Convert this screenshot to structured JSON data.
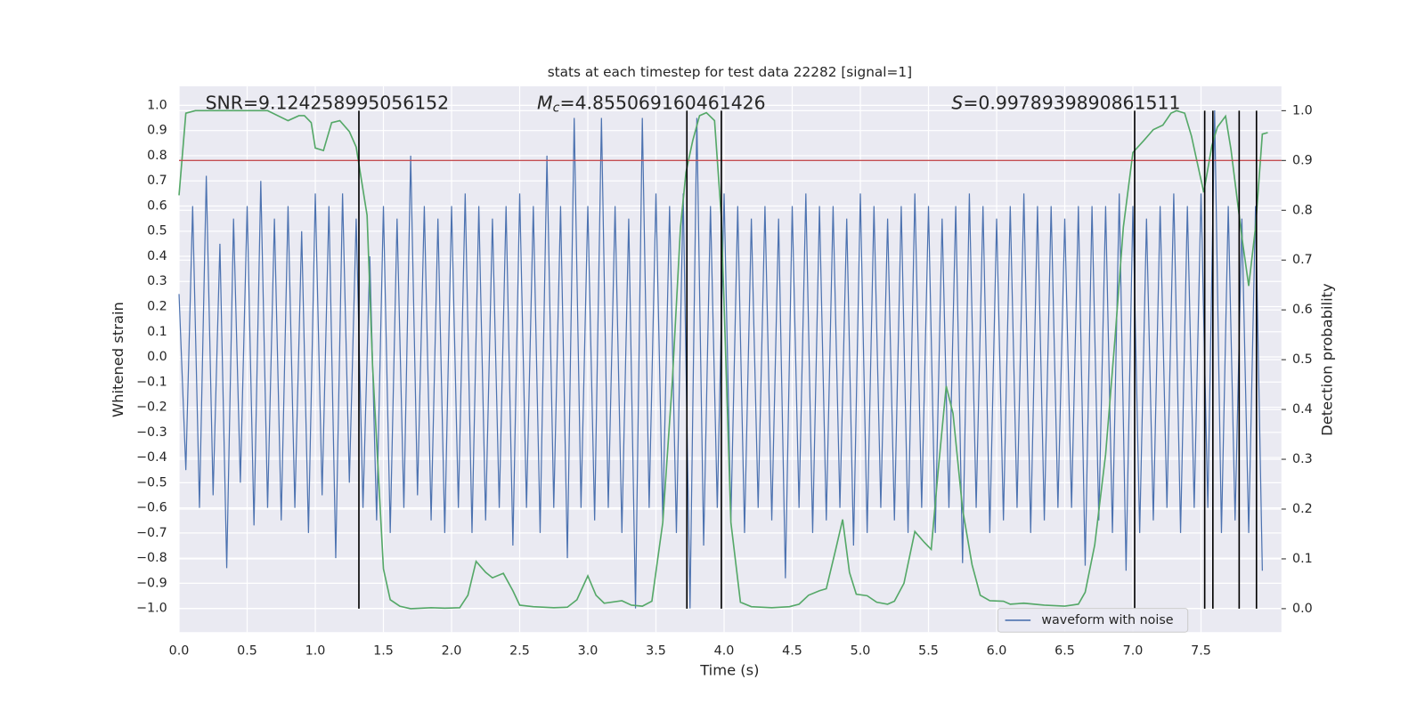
{
  "chart_data": {
    "type": "line",
    "title": "stats at each timestep for test data 22282 [signal=1]",
    "xlabel": "Time (s)",
    "ylabel": "Whitened strain",
    "y2label": "Detection probability",
    "annotations": [
      {
        "text": "SNR=9.124258995056152"
      },
      {
        "symbol": "M",
        "sub": "c",
        "text": "=4.855069160461426"
      },
      {
        "symbol": "S",
        "text": "=0.9978939890861511"
      }
    ],
    "xlim": [
      0,
      8.09
    ],
    "ylim": [
      -1.094,
      1.076
    ],
    "y2lim": [
      -0.047,
      1.049
    ],
    "xticks": [
      {
        "value": 0,
        "label": "0.0"
      },
      {
        "value": 0.5,
        "label": "0.5"
      },
      {
        "value": 1,
        "label": "1.0"
      },
      {
        "value": 1.5,
        "label": "1.5"
      },
      {
        "value": 2,
        "label": "2.0"
      },
      {
        "value": 2.5,
        "label": "2.5"
      },
      {
        "value": 3,
        "label": "3.0"
      },
      {
        "value": 3.5,
        "label": "3.5"
      },
      {
        "value": 4,
        "label": "4.0"
      },
      {
        "value": 4.5,
        "label": "4.5"
      },
      {
        "value": 5,
        "label": "5.0"
      },
      {
        "value": 5.5,
        "label": "5.5"
      },
      {
        "value": 6,
        "label": "6.0"
      },
      {
        "value": 6.5,
        "label": "6.5"
      },
      {
        "value": 7,
        "label": "7.0"
      },
      {
        "value": 7.5,
        "label": "7.5"
      }
    ],
    "yticks": [
      {
        "value": -1,
        "label": "−1.0"
      },
      {
        "value": -0.9,
        "label": "−0.9"
      },
      {
        "value": -0.8,
        "label": "−0.8"
      },
      {
        "value": -0.7,
        "label": "−0.7"
      },
      {
        "value": -0.6,
        "label": "−0.6"
      },
      {
        "value": -0.5,
        "label": "−0.5"
      },
      {
        "value": -0.4,
        "label": "−0.4"
      },
      {
        "value": -0.3,
        "label": "−0.3"
      },
      {
        "value": -0.2,
        "label": "−0.2"
      },
      {
        "value": -0.1,
        "label": "−0.1"
      },
      {
        "value": 0,
        "label": "0.0"
      },
      {
        "value": 0.1,
        "label": "0.1"
      },
      {
        "value": 0.2,
        "label": "0.2"
      },
      {
        "value": 0.3,
        "label": "0.3"
      },
      {
        "value": 0.4,
        "label": "0.4"
      },
      {
        "value": 0.5,
        "label": "0.5"
      },
      {
        "value": 0.6,
        "label": "0.6"
      },
      {
        "value": 0.7,
        "label": "0.7"
      },
      {
        "value": 0.8,
        "label": "0.8"
      },
      {
        "value": 0.9,
        "label": "0.9"
      },
      {
        "value": 1,
        "label": "1.0"
      }
    ],
    "y2ticks": [
      {
        "value": 0,
        "label": "0.0"
      },
      {
        "value": 0.1,
        "label": "0.1"
      },
      {
        "value": 0.2,
        "label": "0.2"
      },
      {
        "value": 0.3,
        "label": "0.3"
      },
      {
        "value": 0.4,
        "label": "0.4"
      },
      {
        "value": 0.5,
        "label": "0.5"
      },
      {
        "value": 0.6,
        "label": "0.6"
      },
      {
        "value": 0.7,
        "label": "0.7"
      },
      {
        "value": 0.8,
        "label": "0.8"
      },
      {
        "value": 0.9,
        "label": "0.9"
      },
      {
        "value": 1,
        "label": "1.0"
      }
    ],
    "grid": true,
    "legend": "lower right",
    "series": [
      {
        "name": "waveform with noise",
        "color": "#4c72b0",
        "axis": "y",
        "x": [
          0,
          0.05,
          0.1,
          0.15,
          0.2,
          0.25,
          0.3,
          0.35,
          0.4,
          0.45,
          0.5,
          0.55,
          0.6,
          0.65,
          0.7,
          0.75,
          0.8,
          0.85,
          0.9,
          0.95,
          1,
          1.05,
          1.1,
          1.15,
          1.2,
          1.25,
          1.3,
          1.35,
          1.4,
          1.45,
          1.5,
          1.55,
          1.6,
          1.65,
          1.7,
          1.75,
          1.8,
          1.85,
          1.9,
          1.95,
          2,
          2.05,
          2.1,
          2.15,
          2.2,
          2.25,
          2.3,
          2.35,
          2.4,
          2.45,
          2.5,
          2.55,
          2.6,
          2.65,
          2.7,
          2.75,
          2.8,
          2.85,
          2.9,
          2.95,
          3,
          3.05,
          3.1,
          3.15,
          3.2,
          3.25,
          3.3,
          3.35,
          3.4,
          3.45,
          3.5,
          3.55,
          3.6,
          3.65,
          3.7,
          3.75,
          3.8,
          3.85,
          3.9,
          3.95,
          4,
          4.05,
          4.1,
          4.15,
          4.2,
          4.25,
          4.3,
          4.35,
          4.4,
          4.45,
          4.5,
          4.55,
          4.6,
          4.65,
          4.7,
          4.75,
          4.8,
          4.85,
          4.9,
          4.95,
          5,
          5.05,
          5.1,
          5.15,
          5.2,
          5.25,
          5.3,
          5.35,
          5.4,
          5.45,
          5.5,
          5.55,
          5.6,
          5.65,
          5.7,
          5.75,
          5.8,
          5.85,
          5.9,
          5.95,
          6,
          6.05,
          6.1,
          6.15,
          6.2,
          6.25,
          6.3,
          6.35,
          6.4,
          6.45,
          6.5,
          6.55,
          6.6,
          6.65,
          6.7,
          6.75,
          6.8,
          6.85,
          6.9,
          6.95,
          7,
          7.05,
          7.1,
          7.15,
          7.2,
          7.25,
          7.3,
          7.35,
          7.4,
          7.45,
          7.5,
          7.55,
          7.6,
          7.65,
          7.7,
          7.75,
          7.8,
          7.85,
          7.9,
          7.95
        ],
        "values": [
          0.25,
          -0.45,
          0.6,
          -0.6,
          0.72,
          -0.55,
          0.45,
          -0.84,
          0.55,
          -0.5,
          0.6,
          -0.67,
          0.7,
          -0.6,
          0.55,
          -0.65,
          0.6,
          -0.6,
          0.5,
          -0.7,
          0.65,
          -0.55,
          0.6,
          -0.8,
          0.65,
          -0.5,
          0.55,
          -0.6,
          0.4,
          -0.65,
          0.6,
          -0.7,
          0.55,
          -0.6,
          0.8,
          -0.55,
          0.6,
          -0.65,
          0.55,
          -0.7,
          0.6,
          -0.6,
          0.65,
          -0.7,
          0.6,
          -0.65,
          0.55,
          -0.6,
          0.6,
          -0.75,
          0.65,
          -0.6,
          0.6,
          -0.7,
          0.8,
          -0.6,
          0.6,
          -0.8,
          0.95,
          -0.6,
          0.6,
          -0.65,
          0.95,
          -0.6,
          0.6,
          -0.7,
          0.55,
          -1.0,
          0.95,
          -0.6,
          0.65,
          -0.65,
          0.6,
          -0.7,
          0.65,
          -1.0,
          0.95,
          -0.75,
          0.6,
          -0.6,
          0.65,
          -0.65,
          0.6,
          -0.7,
          0.55,
          -0.6,
          0.6,
          -0.65,
          0.55,
          -0.88,
          0.6,
          -0.6,
          0.65,
          -0.7,
          0.6,
          -0.65,
          0.6,
          -0.6,
          0.55,
          -0.75,
          0.65,
          -0.7,
          0.6,
          -0.6,
          0.55,
          -0.65,
          0.6,
          -0.7,
          0.65,
          -0.6,
          0.6,
          -0.7,
          0.55,
          -0.6,
          0.6,
          -0.82,
          0.65,
          -0.6,
          0.6,
          -0.7,
          0.55,
          -0.65,
          0.6,
          -0.6,
          0.65,
          -0.7,
          0.6,
          -0.65,
          0.6,
          -0.6,
          0.55,
          -0.6,
          0.6,
          -0.83,
          0.6,
          -0.65,
          0.6,
          -0.7,
          0.65,
          -0.85,
          0.6,
          -0.7,
          0.55,
          -0.65,
          0.6,
          -0.6,
          0.65,
          -0.7,
          0.6,
          -0.6,
          0.65,
          -0.6,
          0.98,
          -0.7,
          0.6,
          -0.65,
          0.55,
          -0.7,
          0.6,
          -0.85
        ]
      },
      {
        "color": "#55a868",
        "axis": "y2",
        "x": [
          0,
          0.05,
          0.12,
          0.65,
          0.8,
          0.88,
          0.92,
          0.97,
          1.0,
          1.06,
          1.12,
          1.18,
          1.25,
          1.3,
          1.38,
          1.42,
          1.5,
          1.55,
          1.62,
          1.7,
          1.85,
          1.95,
          2.06,
          2.12,
          2.18,
          2.25,
          2.3,
          2.38,
          2.45,
          2.5,
          2.6,
          2.75,
          2.85,
          2.92,
          3.0,
          3.06,
          3.12,
          3.25,
          3.32,
          3.4,
          3.47,
          3.55,
          3.62,
          3.68,
          3.72,
          3.77,
          3.82,
          3.87,
          3.93,
          3.98,
          4.05,
          4.12,
          4.2,
          4.35,
          4.48,
          4.55,
          4.62,
          4.7,
          4.75,
          4.82,
          4.87,
          4.92,
          4.97,
          5.05,
          5.12,
          5.2,
          5.25,
          5.32,
          5.4,
          5.47,
          5.52,
          5.57,
          5.63,
          5.68,
          5.75,
          5.82,
          5.88,
          5.95,
          6.05,
          6.1,
          6.2,
          6.35,
          6.5,
          6.6,
          6.65,
          6.72,
          6.8,
          6.87,
          6.93,
          7.0,
          7.08,
          7.15,
          7.22,
          7.28,
          7.32,
          7.38,
          7.43,
          7.52,
          7.58,
          7.62,
          7.68,
          7.72,
          7.8,
          7.85,
          7.9,
          7.95,
          7.99
        ],
        "values": [
          0.83,
          0.995,
          1.0,
          1.0,
          0.98,
          0.99,
          0.99,
          0.976,
          0.925,
          0.92,
          0.976,
          0.98,
          0.958,
          0.927,
          0.79,
          0.49,
          0.08,
          0.018,
          0.005,
          0.0,
          0.002,
          0.001,
          0.002,
          0.027,
          0.095,
          0.073,
          0.062,
          0.071,
          0.036,
          0.007,
          0.004,
          0.002,
          0.003,
          0.018,
          0.066,
          0.027,
          0.011,
          0.016,
          0.007,
          0.005,
          0.015,
          0.173,
          0.456,
          0.766,
          0.876,
          0.94,
          0.99,
          0.996,
          0.98,
          0.785,
          0.173,
          0.013,
          0.004,
          0.002,
          0.004,
          0.009,
          0.027,
          0.036,
          0.04,
          0.12,
          0.179,
          0.073,
          0.029,
          0.026,
          0.013,
          0.009,
          0.015,
          0.051,
          0.155,
          0.133,
          0.119,
          0.274,
          0.447,
          0.392,
          0.2,
          0.088,
          0.027,
          0.016,
          0.015,
          0.009,
          0.011,
          0.007,
          0.005,
          0.009,
          0.033,
          0.128,
          0.31,
          0.547,
          0.766,
          0.916,
          0.94,
          0.962,
          0.971,
          0.995,
          1.0,
          0.995,
          0.949,
          0.836,
          0.93,
          0.967,
          0.989,
          0.922,
          0.746,
          0.648,
          0.766,
          0.953,
          0.956
        ]
      }
    ],
    "hlines": [
      {
        "value": 0.9,
        "axis": "y2",
        "color": "#c44e52"
      }
    ],
    "vlines": {
      "x": [
        1.32,
        3.727,
        3.98,
        7.013,
        7.527,
        7.587,
        7.78,
        7.907
      ],
      "ymin": 0,
      "ymax": 1,
      "axis": "y2",
      "color": "#000000"
    }
  }
}
